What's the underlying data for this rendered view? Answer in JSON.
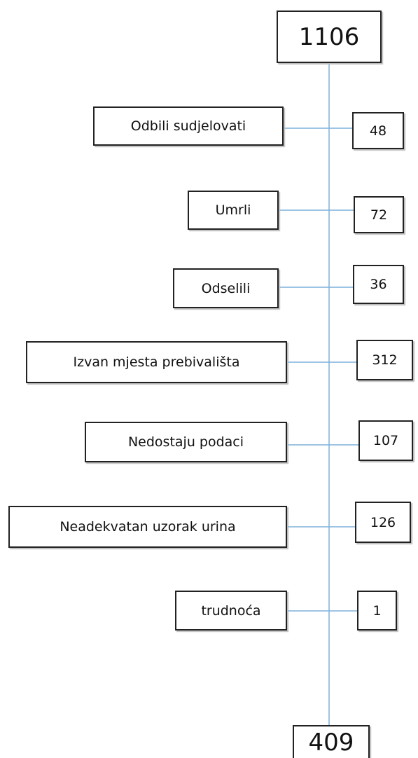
{
  "top": {
    "label": "1106"
  },
  "exclusions": [
    {
      "label": "Odbili sudjelovati",
      "count": "48"
    },
    {
      "label": "Umrli",
      "count": "72"
    },
    {
      "label": "Odselili",
      "count": "36"
    },
    {
      "label": "Izvan mjesta prebivališta",
      "count": "312"
    },
    {
      "label": "Nedostaju podaci",
      "count": "107"
    },
    {
      "label": "Neadekvatan uzorak urina",
      "count": "126"
    },
    {
      "label": "trudnoća",
      "count": "1"
    }
  ],
  "bottom": {
    "label": "409"
  }
}
